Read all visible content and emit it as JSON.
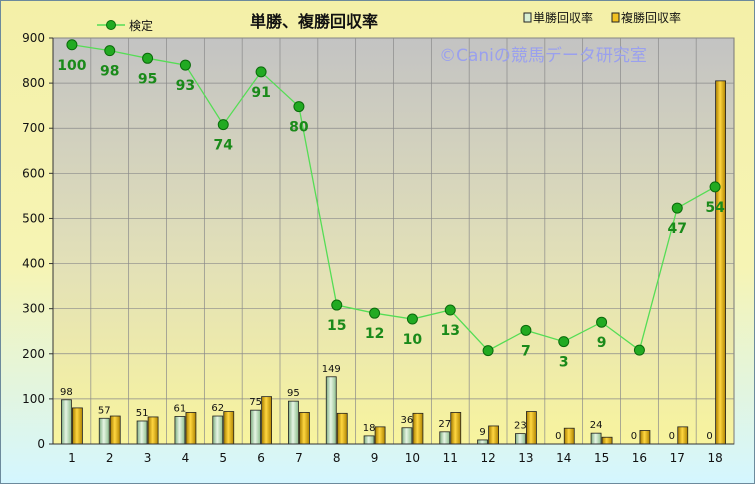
{
  "watermark": "©Caniの競馬データ研究室",
  "chart_data": {
    "type": "bar",
    "title": "単勝、複勝回収率",
    "xlabel": "",
    "ylabel": "",
    "ylim": [
      0,
      900
    ],
    "yticks": [
      0,
      100,
      200,
      300,
      400,
      500,
      600,
      700,
      800,
      900
    ],
    "grid": true,
    "legend": "top",
    "categories": [
      "1",
      "2",
      "3",
      "4",
      "5",
      "6",
      "7",
      "8",
      "9",
      "10",
      "11",
      "12",
      "13",
      "14",
      "15",
      "16",
      "17",
      "18"
    ],
    "series": [
      {
        "name": "単勝回収率",
        "color": "#cfeccc",
        "values": [
          98,
          57,
          51,
          61,
          62,
          75,
          95,
          149,
          18,
          36,
          27,
          9,
          23,
          0,
          24,
          0,
          0,
          0
        ]
      },
      {
        "name": "複勝回収率",
        "color": "#f5c518",
        "values": [
          80,
          62,
          60,
          70,
          72,
          105,
          70,
          68,
          38,
          68,
          70,
          40,
          72,
          35,
          15,
          30,
          38,
          805
        ]
      }
    ],
    "line_series": {
      "name": "検定",
      "color": "#55dd55",
      "values": [
        885,
        872,
        855,
        840,
        708,
        825,
        748,
        308,
        290,
        277,
        297,
        207,
        252,
        227,
        270,
        208,
        523,
        570
      ],
      "labels": [
        "100",
        "98",
        "95",
        "93",
        "74",
        "91",
        "80",
        "15",
        "12",
        "10",
        "13",
        "",
        "7",
        "3",
        "9",
        "",
        "47",
        "54"
      ]
    }
  }
}
